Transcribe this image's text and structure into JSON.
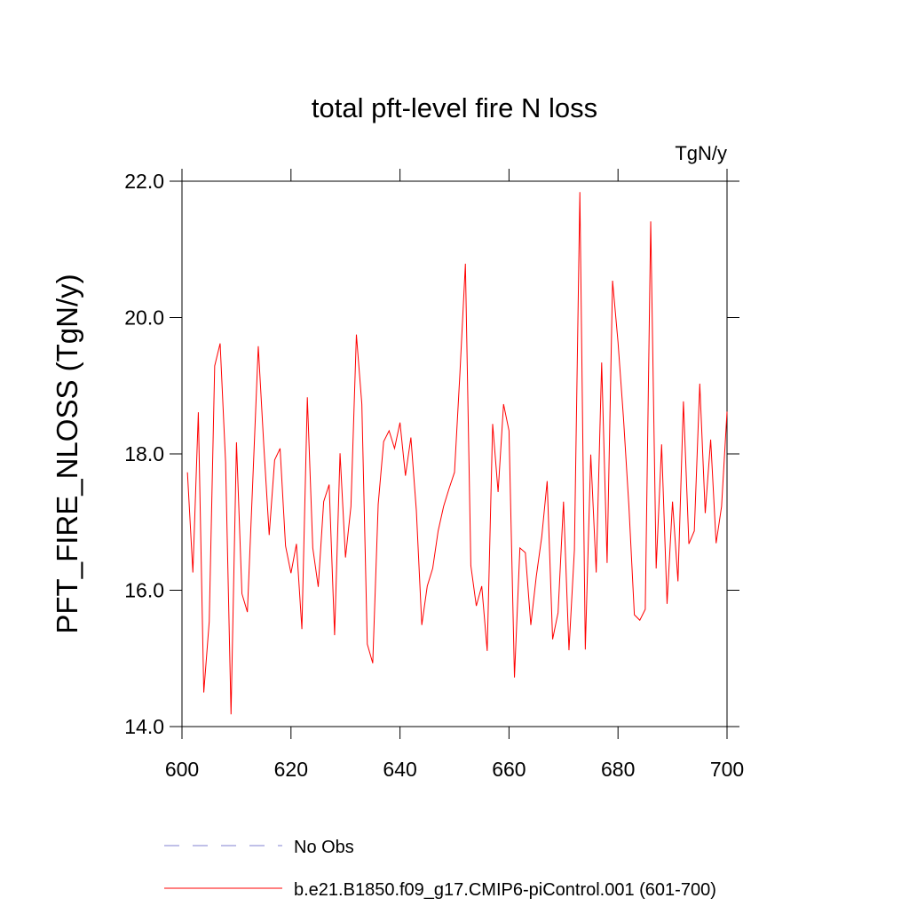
{
  "chart_data": {
    "type": "line",
    "title": "total pft-level fire N loss",
    "units_label": "TgN/y",
    "ylabel": "PFT_FIRE_NLOSS  (TgN/y)",
    "x": [
      601,
      602,
      603,
      604,
      605,
      606,
      607,
      608,
      609,
      610,
      611,
      612,
      613,
      614,
      615,
      616,
      617,
      618,
      619,
      620,
      621,
      622,
      623,
      624,
      625,
      626,
      627,
      628,
      629,
      630,
      631,
      632,
      633,
      634,
      635,
      636,
      637,
      638,
      639,
      640,
      641,
      642,
      643,
      644,
      645,
      646,
      647,
      648,
      649,
      650,
      651,
      652,
      653,
      654,
      655,
      656,
      657,
      658,
      659,
      660,
      661,
      662,
      663,
      664,
      665,
      666,
      667,
      668,
      669,
      670,
      671,
      672,
      673,
      674,
      675,
      676,
      677,
      678,
      679,
      680,
      681,
      682,
      683,
      684,
      685,
      686,
      687,
      688,
      689,
      690,
      691,
      692,
      693,
      694,
      695,
      696,
      697,
      698,
      699,
      700
    ],
    "series": [
      {
        "name": "b.e21.B1850.f09_g17.CMIP6-piControl.001 (601-700)",
        "color": "#ff0000",
        "values": [
          17.73,
          16.26,
          18.61,
          14.5,
          15.54,
          19.29,
          19.62,
          17.88,
          14.18,
          18.17,
          15.95,
          15.68,
          17.62,
          19.58,
          18.14,
          16.81,
          17.91,
          18.08,
          16.65,
          16.25,
          16.68,
          15.43,
          18.83,
          16.62,
          16.05,
          17.3,
          17.55,
          15.34,
          18.01,
          16.48,
          17.23,
          19.75,
          18.73,
          15.21,
          14.93,
          17.26,
          18.18,
          18.34,
          18.08,
          18.46,
          17.68,
          18.24,
          17.17,
          15.49,
          16.06,
          16.32,
          16.87,
          17.23,
          17.49,
          17.73,
          19.19,
          20.79,
          16.36,
          15.77,
          16.06,
          15.11,
          18.44,
          17.44,
          18.73,
          18.34,
          14.72,
          16.62,
          16.55,
          15.49,
          16.2,
          16.78,
          17.6,
          15.28,
          15.67,
          17.3,
          15.12,
          16.59,
          21.84,
          15.13,
          17.99,
          16.26,
          19.34,
          16.4,
          20.54,
          19.64,
          18.53,
          17.23,
          15.64,
          15.56,
          15.72,
          21.41,
          16.32,
          18.14,
          15.8,
          17.3,
          16.13,
          18.77,
          16.68,
          16.87,
          19.03,
          17.13,
          18.21,
          16.69,
          17.23,
          18.62
        ]
      }
    ],
    "reference_legend": {
      "name": "No Obs",
      "color": "#8080d0"
    },
    "xlim": [
      600,
      700
    ],
    "xticks": [
      600,
      620,
      640,
      660,
      680,
      700
    ],
    "ylim": [
      14,
      22
    ],
    "yticks": [
      {
        "value": 14,
        "label": "14.0"
      },
      {
        "value": 16,
        "label": "16.0"
      },
      {
        "value": 18,
        "label": "18.0"
      },
      {
        "value": 20,
        "label": "20.0"
      },
      {
        "value": 22,
        "label": "22.0"
      }
    ]
  }
}
